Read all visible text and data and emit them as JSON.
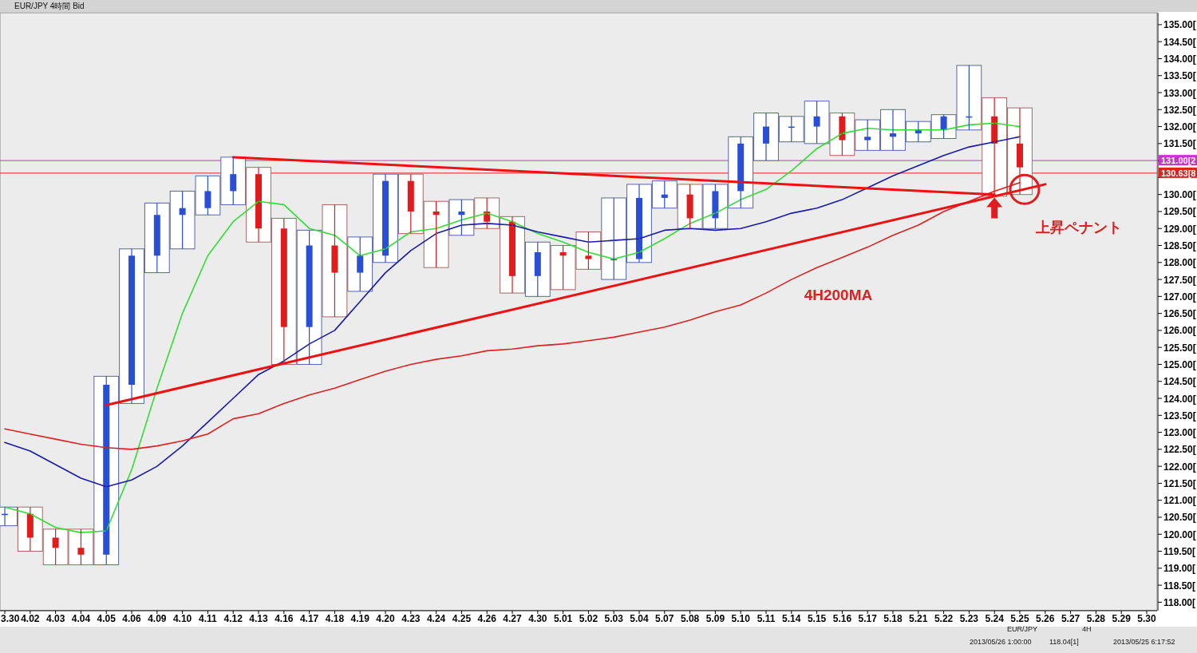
{
  "chart_data": {
    "type": "candlestick",
    "title": "EUR/JPY 4時間 Bid",
    "categories": [
      "3.30",
      "4.02",
      "4.03",
      "4.04",
      "4.05",
      "4.06",
      "4.09",
      "4.10",
      "4.11",
      "4.12",
      "4.13",
      "4.16",
      "4.17",
      "4.18",
      "4.19",
      "4.20",
      "4.23",
      "4.24",
      "4.25",
      "4.26",
      "4.27",
      "4.30",
      "5.01",
      "5.02",
      "5.03",
      "5.04",
      "5.07",
      "5.08",
      "5.09",
      "5.10",
      "5.11",
      "5.14",
      "5.15",
      "5.16",
      "5.17",
      "5.18",
      "5.21",
      "5.22",
      "5.23",
      "5.24",
      "5.25",
      "5.26",
      "5.27",
      "5.28",
      "5.29",
      "5.30"
    ],
    "ohlc": [
      [
        120.6,
        120.8,
        120.25,
        120.6
      ],
      [
        120.6,
        120.8,
        119.5,
        119.9
      ],
      [
        119.9,
        120.15,
        119.1,
        119.6
      ],
      [
        119.6,
        120.15,
        119.1,
        119.4
      ],
      [
        119.4,
        124.65,
        119.1,
        124.4
      ],
      [
        124.4,
        128.4,
        123.85,
        128.2
      ],
      [
        128.2,
        129.75,
        127.7,
        129.4
      ],
      [
        129.4,
        130.1,
        128.4,
        129.6
      ],
      [
        129.6,
        130.55,
        129.4,
        130.1
      ],
      [
        130.1,
        131.1,
        129.7,
        130.6
      ],
      [
        130.6,
        130.8,
        128.6,
        129.0
      ],
      [
        129.0,
        129.3,
        125.0,
        126.1
      ],
      [
        126.1,
        128.95,
        125.0,
        128.5
      ],
      [
        128.5,
        129.7,
        126.4,
        127.7
      ],
      [
        127.7,
        128.75,
        127.15,
        128.2
      ],
      [
        128.2,
        130.6,
        128.0,
        130.4
      ],
      [
        130.4,
        130.6,
        128.85,
        129.5
      ],
      [
        129.5,
        129.8,
        127.85,
        129.4
      ],
      [
        129.4,
        129.85,
        128.8,
        129.5
      ],
      [
        129.5,
        129.9,
        129.0,
        129.2
      ],
      [
        129.2,
        129.35,
        127.1,
        127.6
      ],
      [
        127.6,
        128.6,
        127.0,
        128.3
      ],
      [
        128.3,
        128.5,
        127.2,
        128.2
      ],
      [
        128.2,
        128.9,
        127.8,
        128.1
      ],
      [
        128.1,
        129.9,
        127.5,
        128.1
      ],
      [
        128.1,
        130.3,
        128.0,
        129.9
      ],
      [
        129.9,
        130.4,
        129.6,
        130.0
      ],
      [
        130.0,
        130.3,
        129.0,
        129.3
      ],
      [
        129.3,
        130.3,
        129.0,
        130.1
      ],
      [
        130.1,
        131.7,
        129.6,
        131.5
      ],
      [
        131.5,
        132.4,
        131.0,
        132.0
      ],
      [
        132.0,
        132.3,
        131.55,
        132.0
      ],
      [
        132.0,
        132.75,
        131.5,
        132.3
      ],
      [
        132.3,
        132.4,
        131.15,
        131.6
      ],
      [
        131.6,
        132.2,
        131.3,
        131.7
      ],
      [
        131.7,
        132.5,
        131.3,
        131.8
      ],
      [
        131.8,
        132.15,
        131.55,
        131.9
      ],
      [
        131.9,
        132.35,
        131.65,
        132.3
      ],
      [
        132.3,
        133.8,
        131.9,
        132.3
      ],
      [
        132.3,
        132.85,
        129.95,
        131.5
      ],
      [
        131.5,
        132.55,
        130.0,
        130.8
      ],
      null,
      null,
      null,
      null,
      null
    ],
    "series": [
      {
        "type": "bar",
        "color": "#ffffff",
        "base": [
          120.25,
          119.5,
          119.1,
          119.1,
          119.1,
          123.85,
          127.7,
          128.4,
          129.4,
          129.7,
          128.6,
          125.0,
          125.0,
          126.4,
          127.15,
          128.0,
          128.85,
          127.85,
          128.8,
          129.0,
          127.1,
          127.0,
          127.2,
          127.8,
          127.5,
          128.0,
          129.6,
          129.0,
          129.0,
          129.6,
          131.0,
          131.55,
          131.5,
          131.15,
          131.3,
          131.3,
          131.55,
          131.65,
          131.9,
          129.95,
          130.0,
          null,
          null,
          null,
          null,
          null
        ],
        "values": [
          0.55,
          1.3,
          1.05,
          1.05,
          5.55,
          4.55,
          2.05,
          1.7,
          1.15,
          1.4,
          2.2,
          4.3,
          3.95,
          3.3,
          1.6,
          2.6,
          1.75,
          1.95,
          1.05,
          0.9,
          2.25,
          1.6,
          1.3,
          1.1,
          2.4,
          2.3,
          0.8,
          1.3,
          1.3,
          2.1,
          1.4,
          0.75,
          1.25,
          1.25,
          0.9,
          1.2,
          0.6,
          0.7,
          1.9,
          2.9,
          2.55,
          null,
          null,
          null,
          null,
          null
        ]
      },
      {
        "type": "line",
        "color": "#33dd33",
        "values": [
          120.8,
          120.6,
          120.2,
          120.05,
          120.1,
          121.9,
          124.3,
          126.5,
          128.2,
          129.2,
          129.8,
          129.7,
          129.0,
          128.8,
          128.2,
          128.4,
          128.9,
          129.0,
          129.25,
          129.45,
          129.2,
          128.85,
          128.6,
          128.3,
          128.1,
          128.3,
          128.7,
          129.15,
          129.45,
          129.85,
          130.15,
          130.7,
          131.35,
          131.8,
          131.95,
          131.9,
          131.9,
          131.9,
          132.05,
          132.1,
          132.0,
          null,
          null,
          null,
          null,
          null
        ]
      },
      {
        "type": "line",
        "color": "#1a1aaa",
        "values": [
          122.7,
          122.45,
          122.05,
          121.65,
          121.4,
          121.6,
          122.0,
          122.6,
          123.3,
          124.0,
          124.7,
          125.1,
          125.6,
          126.0,
          126.85,
          127.7,
          128.35,
          128.85,
          129.1,
          129.15,
          129.1,
          128.9,
          128.75,
          128.6,
          128.65,
          128.7,
          128.95,
          129.0,
          128.95,
          129.0,
          129.2,
          129.45,
          129.6,
          129.85,
          130.2,
          130.55,
          130.85,
          131.15,
          131.4,
          131.55,
          131.7,
          null,
          null,
          null,
          null,
          null
        ]
      },
      {
        "type": "line",
        "name": "4H200MA",
        "color": "#dd2222",
        "values": [
          123.1,
          122.95,
          122.8,
          122.65,
          122.55,
          122.5,
          122.6,
          122.75,
          122.95,
          123.4,
          123.55,
          123.85,
          124.1,
          124.3,
          124.55,
          124.8,
          125.0,
          125.15,
          125.25,
          125.4,
          125.45,
          125.55,
          125.6,
          125.7,
          125.8,
          125.95,
          126.1,
          126.3,
          126.55,
          126.75,
          127.1,
          127.5,
          127.85,
          128.15,
          128.45,
          128.8,
          129.1,
          129.5,
          129.8,
          130.1,
          130.35,
          null,
          null,
          null,
          null,
          null
        ]
      },
      {
        "type": "line",
        "color": "#ee1111",
        "x": [
          "4.12",
          "5.24"
        ],
        "values": [
          131.1,
          130.0
        ]
      },
      {
        "type": "line",
        "color": "#ee1111",
        "x": [
          "4.05",
          "5.26"
        ],
        "values": [
          123.8,
          130.3
        ]
      }
    ],
    "ref_lines": [
      {
        "axis": "y",
        "value": 131.0,
        "label": "131.00[2",
        "color": "#cc33cc"
      },
      {
        "axis": "y",
        "value": 130.63,
        "label": "130.63[8",
        "color": "#dd2222"
      }
    ],
    "ylim": [
      117.75,
      135.35
    ],
    "yticks": [
      {
        "value": 118,
        "label": "118.00["
      },
      {
        "value": 118.5,
        "label": "118.50["
      },
      {
        "value": 119,
        "label": "119.00["
      },
      {
        "value": 119.5,
        "label": "119.50["
      },
      {
        "value": 120,
        "label": "120.00["
      },
      {
        "value": 120.5,
        "label": "120.50["
      },
      {
        "value": 121,
        "label": "121.00["
      },
      {
        "value": 121.5,
        "label": "121.50["
      },
      {
        "value": 122,
        "label": "122.00["
      },
      {
        "value": 122.5,
        "label": "122.50["
      },
      {
        "value": 123,
        "label": "123.00["
      },
      {
        "value": 123.5,
        "label": "123.50["
      },
      {
        "value": 124,
        "label": "124.00["
      },
      {
        "value": 124.5,
        "label": "124.50["
      },
      {
        "value": 125,
        "label": "125.00["
      },
      {
        "value": 125.5,
        "label": "125.50["
      },
      {
        "value": 126,
        "label": "126.00["
      },
      {
        "value": 126.5,
        "label": "126.50["
      },
      {
        "value": 127,
        "label": "127.00["
      },
      {
        "value": 127.5,
        "label": "127.50["
      },
      {
        "value": 128,
        "label": "128.00["
      },
      {
        "value": 128.5,
        "label": "128.50["
      },
      {
        "value": 129,
        "label": "129.00["
      },
      {
        "value": 129.5,
        "label": "129.50["
      },
      {
        "value": 130,
        "label": "130.00["
      },
      {
        "value": 130.5,
        "label": null
      },
      {
        "value": 131,
        "label": null
      },
      {
        "value": 131.5,
        "label": "131.50["
      },
      {
        "value": 132,
        "label": "132.00["
      },
      {
        "value": 132.5,
        "label": "132.50["
      },
      {
        "value": 133,
        "label": "133.00["
      },
      {
        "value": 133.5,
        "label": "133.50["
      },
      {
        "value": 134,
        "label": "134.00["
      },
      {
        "value": 134.5,
        "label": "134.50["
      },
      {
        "value": 135,
        "label": "135.00["
      }
    ],
    "annotations": [
      "上昇ペナント",
      "EUR/JPY",
      "4H",
      "2013/05/26 1:00:00",
      "118.04[1]",
      "2013/05/25 6:17:52"
    ],
    "marker": "none"
  }
}
